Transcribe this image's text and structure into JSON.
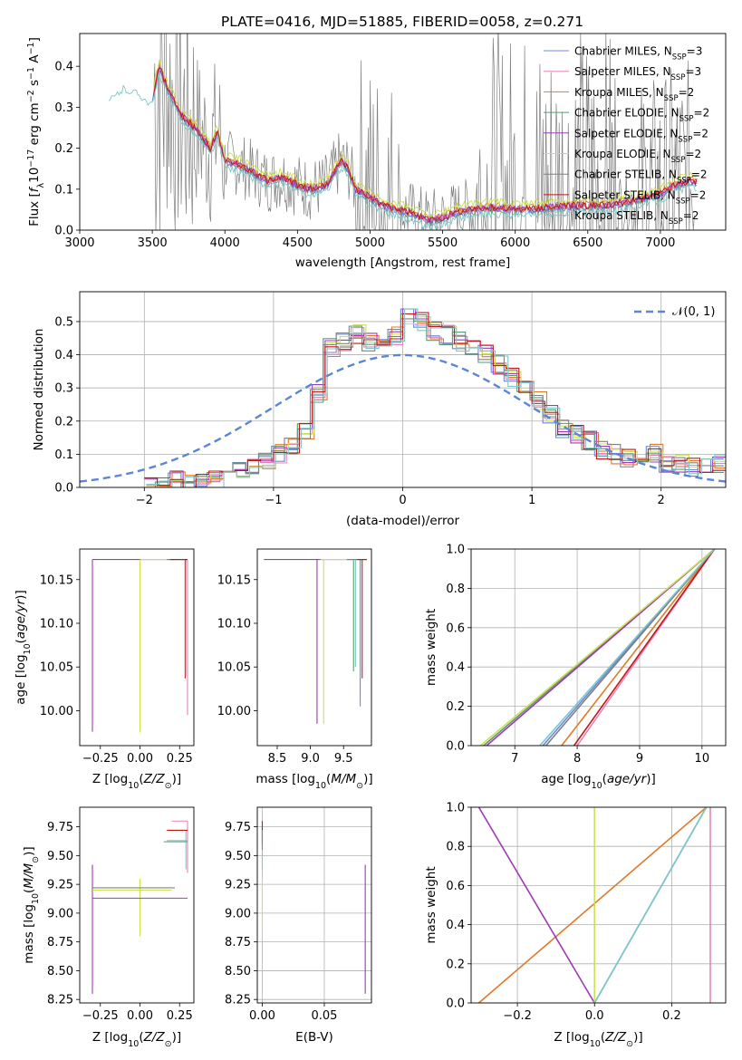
{
  "figure": {
    "title": "PLATE=0416, MJD=51885, FIBERID=0058, z=0.271"
  },
  "series_names": [
    "Chabrier MILES, N_SSP=3",
    "Salpeter MILES, N_SSP=3",
    "Kroupa MILES, N_SSP=2",
    "Chabrier ELODIE, N_SSP=2",
    "Salpeter ELODIE, N_SSP=2",
    "Kroupa ELODIE, N_SSP=2",
    "Chabrier STELIB, N_SSP=2",
    "Salpeter STELIB, N_SSP=2",
    "Kroupa STELIB, N_SSP=2"
  ],
  "series_colors": [
    "#6a89dc",
    "#e884b8",
    "#e07a28",
    "#5a9a78",
    "#a038b8",
    "#cce050",
    "#808080",
    "#c01818",
    "#7cc8c8"
  ],
  "chart_data": [
    {
      "id": "spectrum",
      "type": "line",
      "title": "PLATE=0416, MJD=51885, FIBERID=0058, z=0.271",
      "xlabel": "wavelength [Angstrom, rest frame]",
      "ylabel": "Flux [f_λ 10^-17 erg cm^-2 s^-1 A^-1]",
      "xlim": [
        3000,
        7450
      ],
      "ylim": [
        0,
        0.48
      ],
      "xticks": [
        3000,
        3500,
        4000,
        4500,
        5000,
        5500,
        6000,
        6500,
        7000
      ],
      "yticks": [
        0.0,
        0.1,
        0.2,
        0.3,
        0.4
      ],
      "grid": false,
      "legend": "right",
      "data_envelope": {
        "x": [
          3200,
          3300,
          3400,
          3500,
          3550,
          3600,
          3700,
          3800,
          3900,
          3950,
          4000,
          4100,
          4200,
          4300,
          4400,
          4500,
          4600,
          4700,
          4800,
          4850,
          4900,
          5000,
          5100,
          5200,
          5300,
          5400,
          5500,
          5600,
          5700,
          5800,
          5900,
          6000,
          6200,
          6400,
          6600,
          6800,
          7000,
          7100,
          7200,
          7250
        ],
        "y": [
          0.33,
          0.36,
          0.35,
          0.32,
          0.4,
          0.35,
          0.28,
          0.25,
          0.2,
          0.24,
          0.17,
          0.16,
          0.14,
          0.12,
          0.13,
          0.11,
          0.1,
          0.11,
          0.17,
          0.15,
          0.1,
          0.08,
          0.06,
          0.05,
          0.04,
          0.025,
          0.03,
          0.045,
          0.05,
          0.055,
          0.055,
          0.05,
          0.055,
          0.06,
          0.06,
          0.07,
          0.09,
          0.11,
          0.12,
          0.12
        ]
      }
    },
    {
      "id": "residuals",
      "type": "line",
      "xlabel": "(data-model)/error",
      "ylabel": "Normed distribution",
      "xlim": [
        -2.5,
        2.5
      ],
      "ylim": [
        0,
        0.59
      ],
      "xticks": [
        -2,
        -1,
        0,
        1,
        2
      ],
      "yticks": [
        0.0,
        0.1,
        0.2,
        0.3,
        0.4,
        0.5
      ],
      "grid": true,
      "legend": "top-right",
      "legend_entries": [
        "𝒩(0, 1)"
      ],
      "step_histogram": {
        "x": [
          -2.0,
          -1.9,
          -1.8,
          -1.7,
          -1.6,
          -1.5,
          -1.4,
          -1.3,
          -1.2,
          -1.1,
          -1.0,
          -0.9,
          -0.8,
          -0.7,
          -0.6,
          -0.5,
          -0.4,
          -0.3,
          -0.2,
          -0.1,
          0.0,
          0.1,
          0.2,
          0.3,
          0.4,
          0.5,
          0.6,
          0.7,
          0.8,
          0.9,
          1.0,
          1.1,
          1.2,
          1.3,
          1.4,
          1.5,
          1.6,
          1.7,
          1.8,
          1.9,
          2.0,
          2.1,
          2.2,
          2.3,
          2.4
        ],
        "y": [
          0.0,
          0.0,
          0.02,
          0.02,
          0.01,
          0.02,
          0.03,
          0.05,
          0.07,
          0.08,
          0.1,
          0.13,
          0.17,
          0.28,
          0.42,
          0.44,
          0.46,
          0.44,
          0.42,
          0.46,
          0.52,
          0.5,
          0.47,
          0.46,
          0.44,
          0.42,
          0.4,
          0.37,
          0.33,
          0.3,
          0.26,
          0.22,
          0.18,
          0.16,
          0.14,
          0.11,
          0.1,
          0.09,
          0.08,
          0.1,
          0.07,
          0.07,
          0.06,
          0.07,
          0.07
        ]
      }
    },
    {
      "id": "z_vs_age",
      "type": "line",
      "xlabel": "Z [log10(Z/Z⊙)]",
      "ylabel": "age [log10(age/yr)]",
      "xlim": [
        -0.38,
        0.34
      ],
      "ylim": [
        9.96,
        10.185
      ],
      "xticks": [
        -0.25,
        0.0,
        0.25
      ],
      "yticks": [
        10.0,
        10.05,
        10.1,
        10.15
      ],
      "grid": false
    },
    {
      "id": "mass_vs_age",
      "type": "line",
      "xlabel": "mass [log10(M/M⊙)]",
      "xlim": [
        8.2,
        9.92
      ],
      "ylim": [
        9.96,
        10.185
      ],
      "xticks": [
        8.5,
        9.0,
        9.5
      ],
      "yticks": [
        10.0,
        10.05,
        10.1,
        10.15
      ],
      "grid": false
    },
    {
      "id": "age_cumulative",
      "type": "line",
      "xlabel": "age [log10(age/yr)]",
      "ylabel": "mass weight",
      "xlim": [
        6.3,
        10.38
      ],
      "ylim": [
        0,
        1
      ],
      "xticks": [
        7,
        8,
        9,
        10
      ],
      "yticks": [
        0.0,
        0.2,
        0.4,
        0.6,
        0.8,
        1.0
      ],
      "grid": true,
      "series": [
        {
          "name": "Chabrier MILES",
          "x": [
            7.45,
            10.2
          ],
          "y": [
            0,
            1
          ]
        },
        {
          "name": "Salpeter MILES",
          "x": [
            8.0,
            10.2
          ],
          "y": [
            0,
            1
          ]
        },
        {
          "name": "Kroupa MILES",
          "x": [
            7.75,
            10.2
          ],
          "y": [
            0,
            1
          ]
        },
        {
          "name": "Chabrier ELODIE",
          "x": [
            6.5,
            10.2
          ],
          "y": [
            0,
            1
          ]
        },
        {
          "name": "Salpeter ELODIE",
          "x": [
            6.55,
            10.2
          ],
          "y": [
            0,
            1
          ]
        },
        {
          "name": "Kroupa ELODIE",
          "x": [
            6.45,
            10.2
          ],
          "y": [
            0,
            1
          ]
        },
        {
          "name": "Chabrier STELIB",
          "x": [
            7.5,
            10.2
          ],
          "y": [
            0,
            1
          ]
        },
        {
          "name": "Salpeter STELIB",
          "x": [
            7.95,
            10.2
          ],
          "y": [
            0,
            1
          ]
        },
        {
          "name": "Kroupa STELIB",
          "x": [
            7.4,
            10.2
          ],
          "y": [
            0,
            1
          ]
        }
      ]
    },
    {
      "id": "z_vs_mass",
      "type": "line",
      "xlabel": "Z [log10(Z/Z⊙)]",
      "ylabel": "mass [log10(M/M⊙)]",
      "xlim": [
        -0.38,
        0.34
      ],
      "ylim": [
        8.22,
        9.92
      ],
      "xticks": [
        -0.25,
        0.0,
        0.25
      ],
      "yticks": [
        8.25,
        8.5,
        8.75,
        9.0,
        9.25,
        9.5,
        9.75
      ],
      "grid": false
    },
    {
      "id": "ebv_vs_mass",
      "type": "line",
      "xlabel": "E(B-V)",
      "xlim": [
        -0.004,
        0.088
      ],
      "ylim": [
        8.22,
        9.92
      ],
      "xticks": [
        0.0,
        0.05
      ],
      "yticks": [
        8.25,
        8.5,
        8.75,
        9.0,
        9.25,
        9.5,
        9.75
      ],
      "grid": true
    },
    {
      "id": "z_cumulative",
      "type": "line",
      "xlabel": "Z [log10(Z/Z⊙)]",
      "ylabel": "mass weight",
      "xlim": [
        -0.32,
        0.34
      ],
      "ylim": [
        0,
        1
      ],
      "xticks": [
        -0.2,
        0.0,
        0.2
      ],
      "yticks": [
        0.0,
        0.2,
        0.4,
        0.6,
        0.8,
        1.0
      ],
      "grid": true,
      "series": [
        {
          "name": "Chabrier MILES",
          "x": [
            0.0,
            0.29
          ],
          "y": [
            0,
            1
          ]
        },
        {
          "name": "Kroupa MILES",
          "x": [
            -0.3,
            0.29
          ],
          "y": [
            0,
            1
          ]
        },
        {
          "name": "Salpeter ELODIE",
          "x": [
            -0.3,
            0.0
          ],
          "y": [
            1,
            0
          ]
        },
        {
          "name": "Kroupa ELODIE",
          "x": [
            0.0,
            0.0
          ],
          "y": [
            0,
            1
          ]
        },
        {
          "name": "Salpeter MILES",
          "x": [
            0.3,
            0.3
          ],
          "y": [
            0,
            1
          ]
        },
        {
          "name": "Kroupa STELIB",
          "x": [
            0.0,
            0.29
          ],
          "y": [
            0,
            1
          ]
        }
      ]
    }
  ]
}
